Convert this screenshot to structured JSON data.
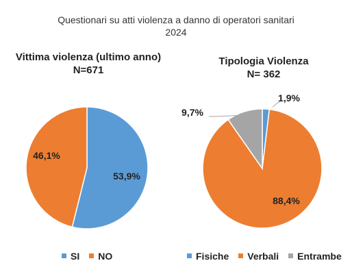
{
  "title": {
    "line1": "Questionari su atti violenza a danno di operatori sanitari",
    "line2": "2024"
  },
  "chart_data": [
    {
      "type": "pie",
      "title": "Vittima violenza (ultimo anno)",
      "subtitle": "N=671",
      "categories": [
        "SI",
        "NO"
      ],
      "values": [
        53.9,
        46.1
      ],
      "value_labels": [
        "53,9%",
        "46,1%"
      ],
      "colors": [
        "#5B9BD5",
        "#ED7D31"
      ],
      "legend": "bottom"
    },
    {
      "type": "pie",
      "title": "Tipologia Violenza",
      "subtitle": "N= 362",
      "categories": [
        "Fisiche",
        "Verbali",
        "Entrambe"
      ],
      "values": [
        1.9,
        88.4,
        9.7
      ],
      "value_labels": [
        "1,9%",
        "88,4%",
        "9,7%"
      ],
      "colors": [
        "#5B9BD5",
        "#ED7D31",
        "#A5A5A5"
      ],
      "legend": "bottom"
    }
  ]
}
